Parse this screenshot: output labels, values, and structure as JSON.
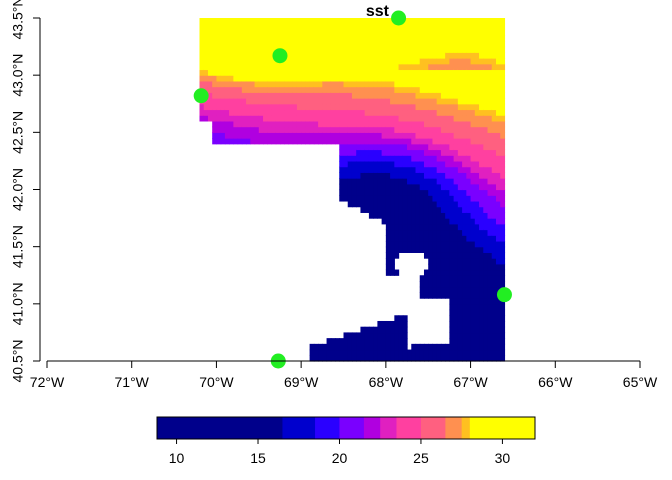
{
  "chart_data": {
    "type": "heatmap",
    "title": "sst",
    "variable": "sst",
    "xlabel": "",
    "ylabel": "",
    "xlim": [
      -72,
      -65
    ],
    "ylim": [
      40.5,
      43.5
    ],
    "x_ticks": [
      {
        "value": -72,
        "label": "72°W"
      },
      {
        "value": -71,
        "label": "71°W"
      },
      {
        "value": -70,
        "label": "70°W"
      },
      {
        "value": -69,
        "label": "69°W"
      },
      {
        "value": -68,
        "label": "68°W"
      },
      {
        "value": -67,
        "label": "67°W"
      },
      {
        "value": -66,
        "label": "66°W"
      },
      {
        "value": -65,
        "label": "65°W"
      }
    ],
    "y_ticks": [
      {
        "value": 40.5,
        "label": "40.5°N"
      },
      {
        "value": 41.0,
        "label": "41.0°N"
      },
      {
        "value": 41.5,
        "label": "41.5°N"
      },
      {
        "value": 42.0,
        "label": "42.0°N"
      },
      {
        "value": 42.5,
        "label": "42.5°N"
      },
      {
        "value": 43.0,
        "label": "43.0°N"
      },
      {
        "value": 43.5,
        "label": "43.5°N"
      }
    ],
    "raster_extent": {
      "xmin": -70.2,
      "xmax": -66.6,
      "ymin": 40.5,
      "ymax": 43.5
    },
    "colorbar": {
      "min": 8.8,
      "max": 32,
      "ticks": [
        10,
        15,
        20,
        25,
        30
      ],
      "tick_labels": [
        "10",
        "15",
        "20",
        "25",
        "30"
      ],
      "colors": [
        "#00008b",
        "#0000cd",
        "#2a00ff",
        "#7a00ff",
        "#b000e0",
        "#e020c0",
        "#ff40a0",
        "#ff6080",
        "#ff9050",
        "#ffc020",
        "#ffff00"
      ],
      "breaks": [
        8.8,
        16.5,
        18.5,
        20.0,
        21.5,
        22.5,
        23.5,
        25.0,
        26.5,
        27.5,
        28.0,
        32.0
      ]
    },
    "points": [
      {
        "lon": -67.85,
        "lat": 43.5
      },
      {
        "lon": -69.25,
        "lat": 43.17
      },
      {
        "lon": -70.18,
        "lat": 42.82
      },
      {
        "lon": -66.6,
        "lat": 41.08
      },
      {
        "lon": -69.27,
        "lat": 40.5
      }
    ],
    "point_color": "#22ee22",
    "grid": false,
    "legend_position": "bottom"
  }
}
